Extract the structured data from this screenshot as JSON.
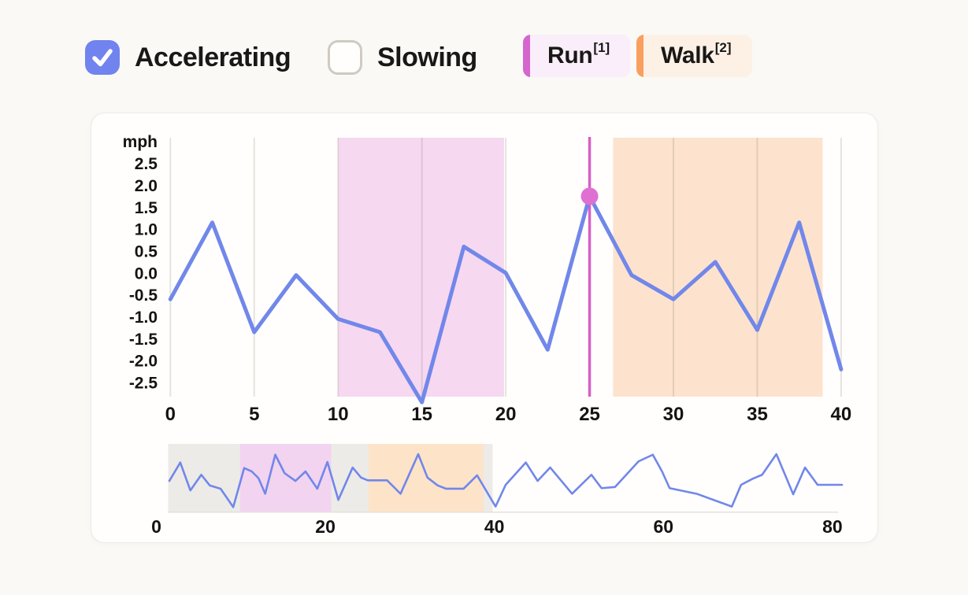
{
  "page": {
    "background": "#faf9f6"
  },
  "toolbar": {
    "checkboxes": [
      {
        "id": "accelerating",
        "label": "Accelerating",
        "checked": true
      },
      {
        "id": "slowing",
        "label": "Slowing",
        "checked": false
      }
    ],
    "legend": [
      {
        "id": "run",
        "label": "Run",
        "superscript": "[1]",
        "accent_color": "#d466ce",
        "bg_color": "#f9eefa"
      },
      {
        "id": "walk",
        "label": "Walk",
        "superscript": "[2]",
        "accent_color": "#f9a05e",
        "bg_color": "#fdf1e6"
      }
    ]
  },
  "colors": {
    "checkbox_blue": "#7183ee",
    "series_blue": "#7187ea",
    "marker_line": "#d75fc8",
    "marker_dot": "#e06fd2",
    "gridline": "rgba(95,85,70,0.16)",
    "text": "#141312",
    "main_run_fill": "#f7d8f1",
    "main_walk_fill": "#fde3cd",
    "mini_window_fill": "#edebe7",
    "mini_run_fill": "#f2d4f0",
    "mini_walk_fill": "#fde3c8",
    "mini_baseline": "#e4e1db"
  },
  "chart_data": [
    {
      "id": "main",
      "type": "line",
      "unit_label": "mph",
      "xlim": [
        0,
        40
      ],
      "ylim": [
        -2.82,
        3.09
      ],
      "x_ticks": [
        0,
        5,
        10,
        15,
        20,
        25,
        30,
        35,
        40
      ],
      "x_tick_labels": [
        "0",
        "5",
        "10",
        "15",
        "20",
        "25",
        "30",
        "35",
        "40"
      ],
      "y_ticks": [
        2.5,
        2.0,
        1.5,
        1.0,
        0.5,
        0.0,
        -0.5,
        -1.0,
        -1.5,
        -2.0,
        -2.5
      ],
      "y_tick_labels": [
        "2.5",
        "2.0",
        "1.5",
        "1.0",
        "0.5",
        "0.0",
        "-0.5",
        "-1.0",
        "-1.5",
        "-2.0",
        "-2.5"
      ],
      "grid": "vertical-only",
      "series": [
        {
          "name": "acceleration",
          "x": [
            0,
            2.5,
            5,
            7.5,
            10,
            12.5,
            15,
            17.5,
            20,
            22.5,
            25,
            27.5,
            30,
            32.5,
            35,
            37.5,
            40
          ],
          "values": [
            -0.6,
            1.15,
            -1.35,
            -0.05,
            -1.05,
            -1.35,
            -2.95,
            0.6,
            0.0,
            -1.75,
            1.75,
            -0.05,
            -0.6,
            0.25,
            -1.3,
            1.15,
            -2.2
          ]
        }
      ],
      "regions": [
        {
          "label": "Run",
          "from": 10.0,
          "to": 19.9
        },
        {
          "label": "Walk",
          "from": 26.4,
          "to": 38.9
        }
      ],
      "marker": {
        "x": 25,
        "y": 1.75
      }
    },
    {
      "id": "overview",
      "type": "line",
      "xlim": [
        0,
        80
      ],
      "ylim": [
        -3,
        3
      ],
      "x_ticks": [
        0,
        20,
        40,
        60,
        80
      ],
      "x_tick_labels": [
        "0",
        "20",
        "40",
        "60",
        "80"
      ],
      "series": [
        {
          "name": "acceleration-overview",
          "points": [
            [
              0,
              -0.25
            ],
            [
              1.3,
              1.4
            ],
            [
              2.5,
              -1.1
            ],
            [
              3.8,
              0.3
            ],
            [
              4.8,
              -0.65
            ],
            [
              6.1,
              -0.95
            ],
            [
              7.6,
              -2.6
            ],
            [
              8.9,
              0.9
            ],
            [
              9.8,
              0.6
            ],
            [
              10.6,
              0.0
            ],
            [
              11.4,
              -1.4
            ],
            [
              12.6,
              2.1
            ],
            [
              13.7,
              0.45
            ],
            [
              15,
              -0.25
            ],
            [
              16.2,
              0.6
            ],
            [
              17.6,
              -0.95
            ],
            [
              18.8,
              1.45
            ],
            [
              20.1,
              -1.95
            ],
            [
              21.8,
              0.95
            ],
            [
              22.8,
              0.05
            ],
            [
              23.6,
              -0.2
            ],
            [
              25.9,
              -0.2
            ],
            [
              27.5,
              -1.4
            ],
            [
              29.6,
              2.15
            ],
            [
              30.7,
              0.05
            ],
            [
              31.9,
              -0.65
            ],
            [
              32.9,
              -0.95
            ],
            [
              35,
              -0.95
            ],
            [
              36.6,
              0.25
            ],
            [
              38.8,
              -2.55
            ],
            [
              40,
              -0.6
            ],
            [
              42.4,
              1.4
            ],
            [
              43.8,
              -0.25
            ],
            [
              45.3,
              0.95
            ],
            [
              47.9,
              -1.4
            ],
            [
              50.2,
              0.3
            ],
            [
              51.4,
              -0.9
            ],
            [
              53,
              -0.8
            ],
            [
              55.8,
              1.5
            ],
            [
              57.5,
              2.1
            ],
            [
              58.6,
              0.6
            ],
            [
              59.5,
              -0.9
            ],
            [
              62.7,
              -1.4
            ],
            [
              66.9,
              -2.55
            ],
            [
              68,
              -0.6
            ],
            [
              69.4,
              -0.05
            ],
            [
              70.5,
              0.3
            ],
            [
              72.2,
              2.15
            ],
            [
              74.2,
              -1.45
            ],
            [
              75.6,
              0.95
            ],
            [
              77.1,
              -0.6
            ],
            [
              80,
              -0.6
            ]
          ]
        }
      ],
      "regions": [
        {
          "label": "window",
          "from": 1.4,
          "to": 39.8
        },
        {
          "label": "Run",
          "from": 9.9,
          "to": 20.7
        },
        {
          "label": "Walk",
          "from": 25.1,
          "to": 38.7
        }
      ]
    }
  ]
}
